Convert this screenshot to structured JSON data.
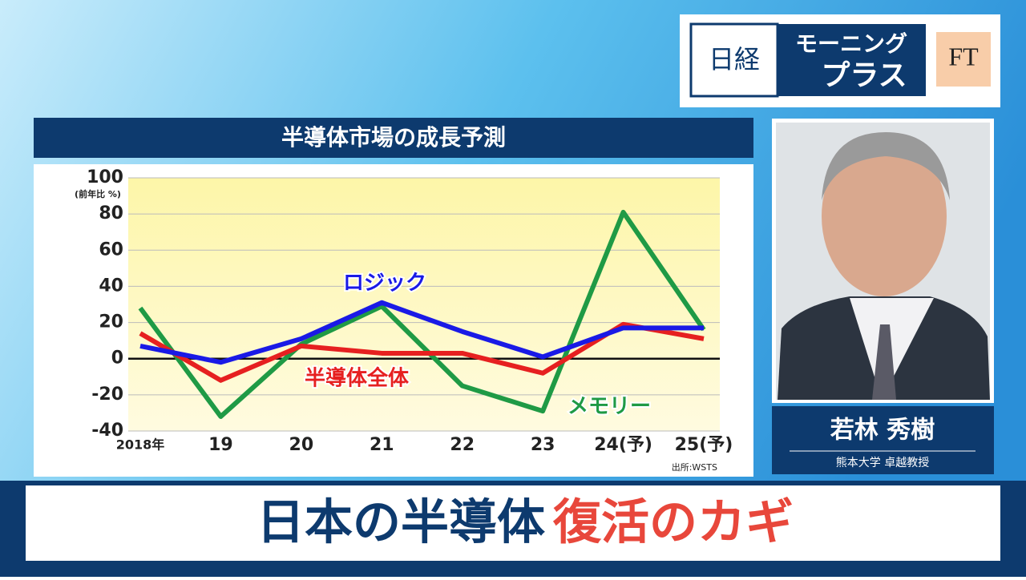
{
  "logo": {
    "nikkei": "日経",
    "program_line1": "モーニング",
    "program_line2": "プラス",
    "ft": "FT"
  },
  "guest": {
    "name": "若林 秀樹",
    "title": "熊本大学 卓越教授"
  },
  "caption": {
    "main": "日本の半導体",
    "highlight": "復活のカギ"
  },
  "chart_data": {
    "type": "line",
    "title": "半導体市場の成長予測",
    "y_label": "(前年比 %)",
    "source": "出所:WSTS",
    "categories": [
      "2018年",
      "19",
      "20",
      "21",
      "22",
      "23",
      "24(予)",
      "25(予)"
    ],
    "ylim": [
      -40,
      100
    ],
    "yticks": [
      -40,
      -20,
      0,
      20,
      40,
      60,
      80,
      100
    ],
    "grid": true,
    "series": [
      {
        "name": "ロジック",
        "color": "#1a1ae6",
        "values": [
          7,
          -2,
          11,
          31,
          15,
          1,
          17,
          17
        ]
      },
      {
        "name": "半導体全体",
        "color": "#e62020",
        "values": [
          14,
          -12,
          7,
          3,
          3,
          -8,
          19,
          11
        ]
      },
      {
        "name": "メモリー",
        "color": "#1f9a45",
        "values": [
          28,
          -32,
          8,
          29,
          -15,
          -29,
          81,
          16
        ]
      }
    ]
  }
}
